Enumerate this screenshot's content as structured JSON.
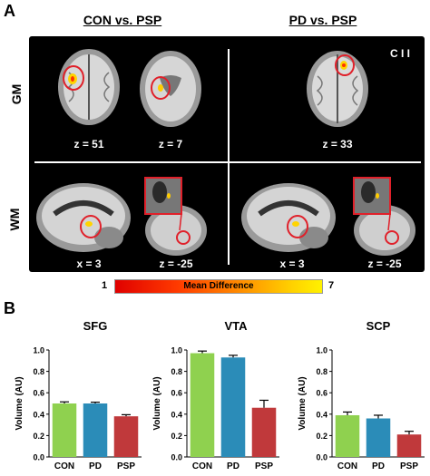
{
  "panel_a": {
    "letter": "A",
    "group_left": "CON vs. PSP",
    "group_right": "PD vs. PSP",
    "row_gm": "GM",
    "row_wm": "WM",
    "corner_label": "C I I",
    "coords": {
      "gm_left_1": "z = 51",
      "gm_left_2": "z = 7",
      "gm_right_1": "z = 33",
      "wm_left_1": "x = 3",
      "wm_left_2": "z = -25",
      "wm_right_1": "x = 3",
      "wm_right_2": "z = -25"
    },
    "colorbar": {
      "min": "1",
      "label": "Mean Difference",
      "max": "7"
    }
  },
  "panel_b": {
    "letter": "B"
  },
  "chart_data": [
    {
      "type": "bar",
      "title": "SFG",
      "ylabel": "Volume (AU)",
      "ylim": [
        0.0,
        1.0
      ],
      "yticks": [
        "0.0",
        "0.2",
        "0.4",
        "0.6",
        "0.8",
        "1.0"
      ],
      "categories": [
        "CON",
        "PD",
        "PSP"
      ],
      "values": [
        0.5,
        0.5,
        0.38
      ],
      "errors": [
        0.015,
        0.012,
        0.015
      ],
      "colors": [
        "#8fd14f",
        "#2b8cb8",
        "#c0393b"
      ]
    },
    {
      "type": "bar",
      "title": "VTA",
      "ylabel": "Volume (AU)",
      "ylim": [
        0.0,
        1.0
      ],
      "yticks": [
        "0.0",
        "0.2",
        "0.4",
        "0.6",
        "0.8",
        "1.0"
      ],
      "categories": [
        "CON",
        "PD",
        "PSP"
      ],
      "values": [
        0.97,
        0.93,
        0.46
      ],
      "errors": [
        0.02,
        0.02,
        0.07
      ],
      "colors": [
        "#8fd14f",
        "#2b8cb8",
        "#c0393b"
      ]
    },
    {
      "type": "bar",
      "title": "SCP",
      "ylabel": "Volume (AU)",
      "ylim": [
        0.0,
        1.0
      ],
      "yticks": [
        "0.0",
        "0.2",
        "0.4",
        "0.6",
        "0.8",
        "1.0"
      ],
      "categories": [
        "CON",
        "PD",
        "PSP"
      ],
      "values": [
        0.39,
        0.36,
        0.21
      ],
      "errors": [
        0.03,
        0.03,
        0.03
      ],
      "colors": [
        "#8fd14f",
        "#2b8cb8",
        "#c0393b"
      ]
    }
  ]
}
